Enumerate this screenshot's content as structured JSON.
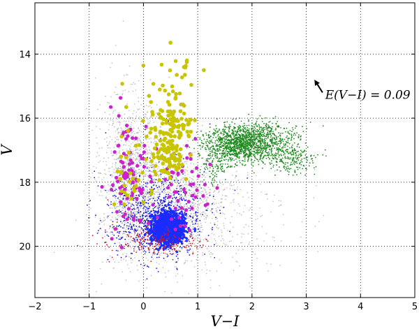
{
  "chart_data": {
    "type": "scatter",
    "title": "",
    "xlabel": "V−I",
    "ylabel": "V",
    "xlim": [
      -2,
      5
    ],
    "ylim": [
      21.6,
      12.4
    ],
    "y_inverted": true,
    "grid": true,
    "grid_style": "dotted",
    "xticks": [
      -2,
      -1,
      0,
      1,
      2,
      3,
      4,
      5
    ],
    "xtick_labels": [
      "−2",
      "−1",
      "0",
      "1",
      "2",
      "3",
      "4",
      "5"
    ],
    "yticks": [
      14,
      16,
      18,
      20
    ],
    "ytick_labels": [
      "14",
      "16",
      "18",
      "20"
    ],
    "annotation": {
      "text": "E(V−I) = 0.09",
      "text_at": [
        3.35,
        15.4
      ],
      "arrow_from": [
        3.3,
        15.2
      ],
      "arrow_to": [
        3.15,
        14.8
      ]
    },
    "series": [
      {
        "color": "#bbbbbb",
        "marker_size": 0.8,
        "count": 2600,
        "clusters": [
          {
            "cx": -0.2,
            "cy": 17.8,
            "sx": 0.3,
            "sy": 1.2,
            "w": 0.5
          },
          {
            "cx": 0.6,
            "cy": 18.6,
            "sx": 0.4,
            "sy": 0.9,
            "w": 0.35
          },
          {
            "cx": 1.0,
            "cy": 19.3,
            "sx": 0.9,
            "sy": 1.0,
            "w": 0.15
          }
        ]
      },
      {
        "color": "#1111dd",
        "marker_size": 0.9,
        "count": 900,
        "clusters": [
          {
            "cx": 0.25,
            "cy": 19.2,
            "sx": 0.45,
            "sy": 0.55,
            "w": 0.7
          },
          {
            "cx": 0.2,
            "cy": 18.6,
            "sx": 0.4,
            "sy": 0.8,
            "w": 0.3
          }
        ]
      },
      {
        "color": "#1a2cff",
        "marker_size": 1.7,
        "count": 1500,
        "clusters": [
          {
            "cx": 0.45,
            "cy": 19.45,
            "sx": 0.14,
            "sy": 0.22,
            "w": 1.0
          }
        ]
      },
      {
        "color": "#d81818",
        "marker_size": 0.9,
        "count": 200,
        "clusters": [
          {
            "cx": 0.4,
            "cy": 19.9,
            "sx": 0.35,
            "sy": 0.2,
            "w": 0.8
          },
          {
            "cx": -0.3,
            "cy": 19.5,
            "sx": 0.3,
            "sy": 0.4,
            "w": 0.2
          }
        ]
      },
      {
        "color": "#1f8a1f",
        "marker_size": 0.9,
        "count": 1900,
        "clusters": [
          {
            "cx": 1.75,
            "cy": 16.8,
            "sx": 0.3,
            "sy": 0.28,
            "w": 0.55
          },
          {
            "cx": 2.25,
            "cy": 16.65,
            "sx": 0.35,
            "sy": 0.3,
            "w": 0.25
          },
          {
            "cx": 2.65,
            "cy": 17.25,
            "sx": 0.25,
            "sy": 0.25,
            "w": 0.12
          },
          {
            "cx": 1.35,
            "cy": 17.4,
            "sx": 0.15,
            "sy": 0.4,
            "w": 0.08
          }
        ]
      },
      {
        "color": "#cc22cc",
        "marker_size": 2.6,
        "count": 140,
        "clusters": [
          {
            "cx": -0.3,
            "cy": 17.8,
            "sx": 0.2,
            "sy": 0.9,
            "w": 0.6
          },
          {
            "cx": 0.7,
            "cy": 18.2,
            "sx": 0.25,
            "sy": 0.7,
            "w": 0.4
          }
        ]
      },
      {
        "color": "#c8c400",
        "marker_size": 2.8,
        "count": 230,
        "clusters": [
          {
            "cx": 0.5,
            "cy": 16.4,
            "sx": 0.18,
            "sy": 0.55,
            "w": 0.55
          },
          {
            "cx": 0.45,
            "cy": 17.3,
            "sx": 0.15,
            "sy": 0.35,
            "w": 0.2
          },
          {
            "cx": -0.35,
            "cy": 17.6,
            "sx": 0.2,
            "sy": 0.9,
            "w": 0.15
          },
          {
            "cx": 0.6,
            "cy": 14.8,
            "sx": 0.3,
            "sy": 0.5,
            "w": 0.1
          }
        ]
      }
    ]
  }
}
